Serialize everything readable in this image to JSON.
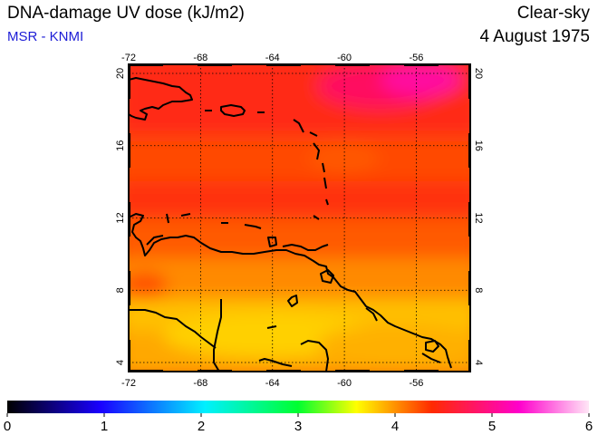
{
  "header": {
    "title": "DNA-damage UV dose (kJ/m2)",
    "credit": "MSR - KNMI",
    "sky_condition": "Clear-sky",
    "date": "4 August 1975"
  },
  "map": {
    "lon_range": [
      -72,
      -53
    ],
    "lat_range": [
      3.5,
      20.5
    ],
    "lon_ticks": [
      -72,
      -68,
      -64,
      -60,
      -56
    ],
    "lat_ticks": [
      4,
      8,
      12,
      16,
      20
    ],
    "lon_tick_labels": [
      "-72",
      "-68",
      "-64",
      "-60",
      "-56"
    ],
    "lat_tick_labels": [
      "4",
      "8",
      "12",
      "16",
      "20"
    ],
    "grid": true,
    "grid_style": "dotted",
    "region": "Caribbean Sea and northern South America",
    "coastline_color": "#000000"
  },
  "colorbar": {
    "min": 0,
    "max": 6,
    "tick_labels": [
      "0",
      "1",
      "2",
      "3",
      "4",
      "5",
      "6"
    ],
    "colors": [
      "#000000",
      "#1a00ff",
      "#00f0ff",
      "#00ff30",
      "#ffff00",
      "#ff2a00",
      "#ff00cc",
      "#ffe6f6"
    ]
  },
  "field": {
    "description_values": "Dose ranges ~4.1 (yellow, south) to ~5.1 (magenta, north-east)",
    "bands": [
      {
        "lat": 20,
        "value": 4.75
      },
      {
        "lat": 17,
        "value": 4.6
      },
      {
        "lat": 14,
        "value": 4.45
      },
      {
        "lat": 12,
        "value": 4.5
      },
      {
        "lat": 9,
        "value": 4.25
      },
      {
        "lat": 6,
        "value": 4.05
      },
      {
        "lat": 4,
        "value": 4.15
      }
    ],
    "max_value": 5.1,
    "max_location": [
      -57.5,
      19.2
    ]
  }
}
